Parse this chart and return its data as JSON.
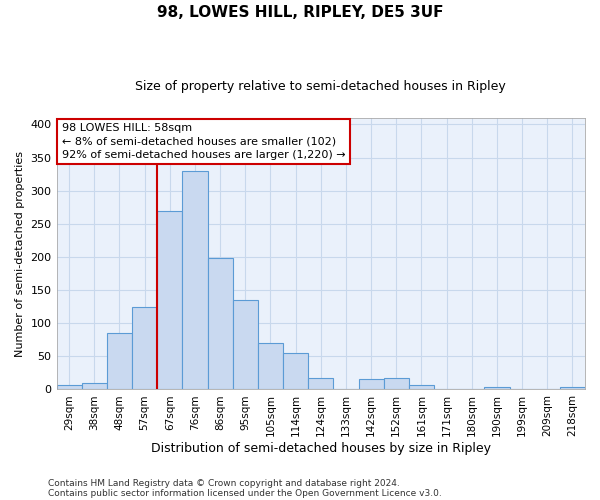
{
  "title": "98, LOWES HILL, RIPLEY, DE5 3UF",
  "subtitle": "Size of property relative to semi-detached houses in Ripley",
  "xlabel": "Distribution of semi-detached houses by size in Ripley",
  "ylabel": "Number of semi-detached properties",
  "categories": [
    "29sqm",
    "38sqm",
    "48sqm",
    "57sqm",
    "67sqm",
    "76sqm",
    "86sqm",
    "95sqm",
    "105sqm",
    "114sqm",
    "124sqm",
    "133sqm",
    "142sqm",
    "152sqm",
    "161sqm",
    "171sqm",
    "180sqm",
    "190sqm",
    "199sqm",
    "209sqm",
    "218sqm"
  ],
  "values": [
    7,
    10,
    85,
    125,
    270,
    330,
    198,
    135,
    70,
    55,
    18,
    0,
    16,
    17,
    7,
    0,
    0,
    3,
    0,
    0,
    3
  ],
  "bar_color": "#c9d9f0",
  "bar_edge_color": "#5b9bd5",
  "property_line_color": "#cc0000",
  "annotation_title": "98 LOWES HILL: 58sqm",
  "annotation_line1": "← 8% of semi-detached houses are smaller (102)",
  "annotation_line2": "92% of semi-detached houses are larger (1,220) →",
  "annotation_box_color": "#cc0000",
  "ylim": [
    0,
    410
  ],
  "yticks": [
    0,
    50,
    100,
    150,
    200,
    250,
    300,
    350,
    400
  ],
  "footer1": "Contains HM Land Registry data © Crown copyright and database right 2024.",
  "footer2": "Contains public sector information licensed under the Open Government Licence v3.0.",
  "bg_color": "#ffffff",
  "plot_bg_color": "#eaf1fb",
  "grid_color": "#c8d8ec"
}
